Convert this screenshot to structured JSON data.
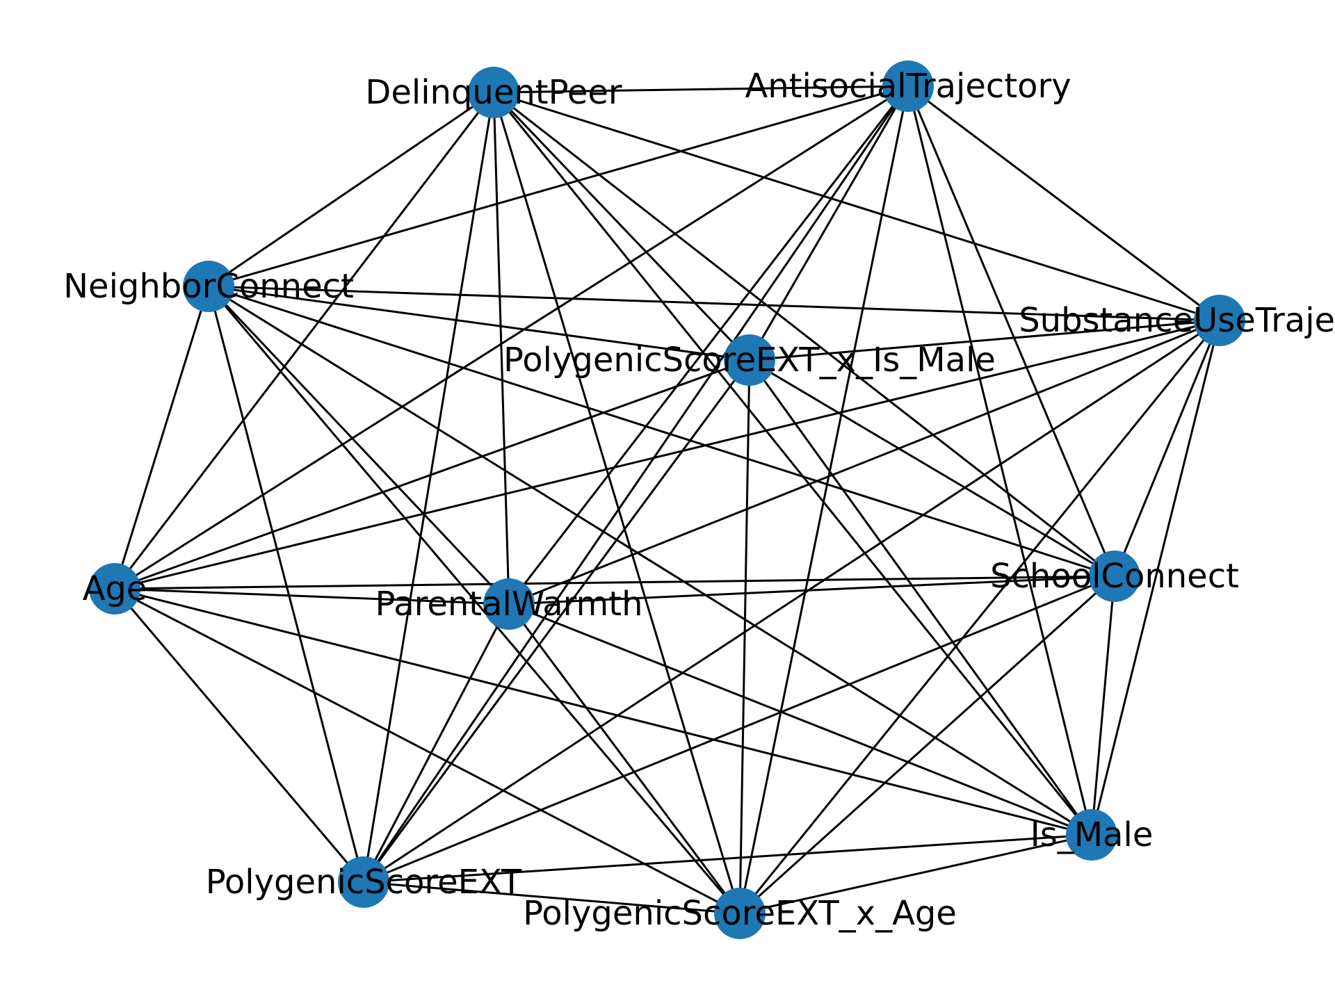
{
  "graph": {
    "node_color": "#1f77b4",
    "edge_color": "#000000",
    "nodes": [
      {
        "id": "DelinquentPeer",
        "label": "DelinquentPeer"
      },
      {
        "id": "AntisocialTrajectory",
        "label": "AntisocialTrajectory"
      },
      {
        "id": "NeighborConnect",
        "label": "NeighborConnect"
      },
      {
        "id": "SubstanceUseTrajectory",
        "label": "SubstanceUseTrajectory"
      },
      {
        "id": "PolygenicScoreEXT_x_Is_Male",
        "label": "PolygenicScoreEXT_x_Is_Male"
      },
      {
        "id": "Age",
        "label": "Age"
      },
      {
        "id": "ParentalWarmth",
        "label": "ParentalWarmth"
      },
      {
        "id": "SchoolConnect",
        "label": "SchoolConnect"
      },
      {
        "id": "Is_Male",
        "label": "Is_Male"
      },
      {
        "id": "PolygenicScoreEXT",
        "label": "PolygenicScoreEXT"
      },
      {
        "id": "PolygenicScoreEXT_x_Age",
        "label": "PolygenicScoreEXT_x_Age"
      }
    ],
    "edges": [
      [
        "DelinquentPeer",
        "AntisocialTrajectory"
      ],
      [
        "DelinquentPeer",
        "NeighborConnect"
      ],
      [
        "DelinquentPeer",
        "SubstanceUseTrajectory"
      ],
      [
        "DelinquentPeer",
        "PolygenicScoreEXT_x_Is_Male"
      ],
      [
        "DelinquentPeer",
        "Age"
      ],
      [
        "DelinquentPeer",
        "ParentalWarmth"
      ],
      [
        "DelinquentPeer",
        "SchoolConnect"
      ],
      [
        "DelinquentPeer",
        "Is_Male"
      ],
      [
        "DelinquentPeer",
        "PolygenicScoreEXT"
      ],
      [
        "DelinquentPeer",
        "PolygenicScoreEXT_x_Age"
      ],
      [
        "AntisocialTrajectory",
        "NeighborConnect"
      ],
      [
        "AntisocialTrajectory",
        "SubstanceUseTrajectory"
      ],
      [
        "AntisocialTrajectory",
        "PolygenicScoreEXT_x_Is_Male"
      ],
      [
        "AntisocialTrajectory",
        "Age"
      ],
      [
        "AntisocialTrajectory",
        "ParentalWarmth"
      ],
      [
        "AntisocialTrajectory",
        "SchoolConnect"
      ],
      [
        "AntisocialTrajectory",
        "Is_Male"
      ],
      [
        "AntisocialTrajectory",
        "PolygenicScoreEXT"
      ],
      [
        "AntisocialTrajectory",
        "PolygenicScoreEXT_x_Age"
      ],
      [
        "NeighborConnect",
        "SubstanceUseTrajectory"
      ],
      [
        "NeighborConnect",
        "PolygenicScoreEXT_x_Is_Male"
      ],
      [
        "NeighborConnect",
        "Age"
      ],
      [
        "NeighborConnect",
        "ParentalWarmth"
      ],
      [
        "NeighborConnect",
        "SchoolConnect"
      ],
      [
        "NeighborConnect",
        "Is_Male"
      ],
      [
        "NeighborConnect",
        "PolygenicScoreEXT"
      ],
      [
        "NeighborConnect",
        "PolygenicScoreEXT_x_Age"
      ],
      [
        "SubstanceUseTrajectory",
        "PolygenicScoreEXT_x_Is_Male"
      ],
      [
        "SubstanceUseTrajectory",
        "Age"
      ],
      [
        "SubstanceUseTrajectory",
        "ParentalWarmth"
      ],
      [
        "SubstanceUseTrajectory",
        "SchoolConnect"
      ],
      [
        "SubstanceUseTrajectory",
        "Is_Male"
      ],
      [
        "SubstanceUseTrajectory",
        "PolygenicScoreEXT"
      ],
      [
        "SubstanceUseTrajectory",
        "PolygenicScoreEXT_x_Age"
      ],
      [
        "PolygenicScoreEXT_x_Is_Male",
        "Age"
      ],
      [
        "PolygenicScoreEXT_x_Is_Male",
        "SchoolConnect"
      ],
      [
        "PolygenicScoreEXT_x_Is_Male",
        "Is_Male"
      ],
      [
        "PolygenicScoreEXT_x_Is_Male",
        "PolygenicScoreEXT"
      ],
      [
        "PolygenicScoreEXT_x_Is_Male",
        "PolygenicScoreEXT_x_Age"
      ],
      [
        "Age",
        "ParentalWarmth"
      ],
      [
        "Age",
        "SchoolConnect"
      ],
      [
        "Age",
        "Is_Male"
      ],
      [
        "Age",
        "PolygenicScoreEXT"
      ],
      [
        "Age",
        "PolygenicScoreEXT_x_Age"
      ],
      [
        "ParentalWarmth",
        "SchoolConnect"
      ],
      [
        "ParentalWarmth",
        "Is_Male"
      ],
      [
        "ParentalWarmth",
        "PolygenicScoreEXT"
      ],
      [
        "ParentalWarmth",
        "PolygenicScoreEXT_x_Age"
      ],
      [
        "SchoolConnect",
        "Is_Male"
      ],
      [
        "SchoolConnect",
        "PolygenicScoreEXT"
      ],
      [
        "SchoolConnect",
        "PolygenicScoreEXT_x_Age"
      ],
      [
        "Is_Male",
        "PolygenicScoreEXT"
      ],
      [
        "Is_Male",
        "PolygenicScoreEXT_x_Age"
      ],
      [
        "PolygenicScoreEXT",
        "PolygenicScoreEXT_x_Age"
      ]
    ]
  }
}
